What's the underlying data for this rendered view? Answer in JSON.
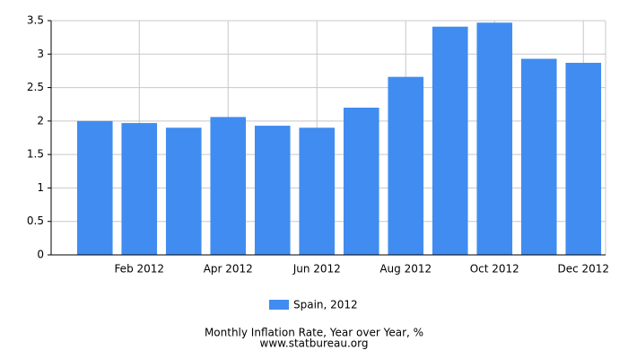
{
  "chart_data": {
    "type": "bar",
    "title": "Monthly Inflation Rate, Year over Year, %",
    "subtitle": "www.statbureau.org",
    "categories": [
      null,
      "Feb 2012",
      null,
      "Apr 2012",
      null,
      "Jun 2012",
      null,
      "Aug 2012",
      null,
      "Oct 2012",
      null,
      "Dec 2012"
    ],
    "series": [
      {
        "name": "Spain, 2012",
        "color": "#418cf0",
        "values": [
          2.0,
          1.97,
          1.9,
          2.06,
          1.93,
          1.9,
          2.2,
          2.66,
          3.41,
          3.47,
          2.93,
          2.87
        ]
      }
    ],
    "ylim": [
      0,
      3.5
    ],
    "yticks": [
      0,
      0.5,
      1,
      1.5,
      2,
      2.5,
      3,
      3.5
    ],
    "grid": true
  }
}
